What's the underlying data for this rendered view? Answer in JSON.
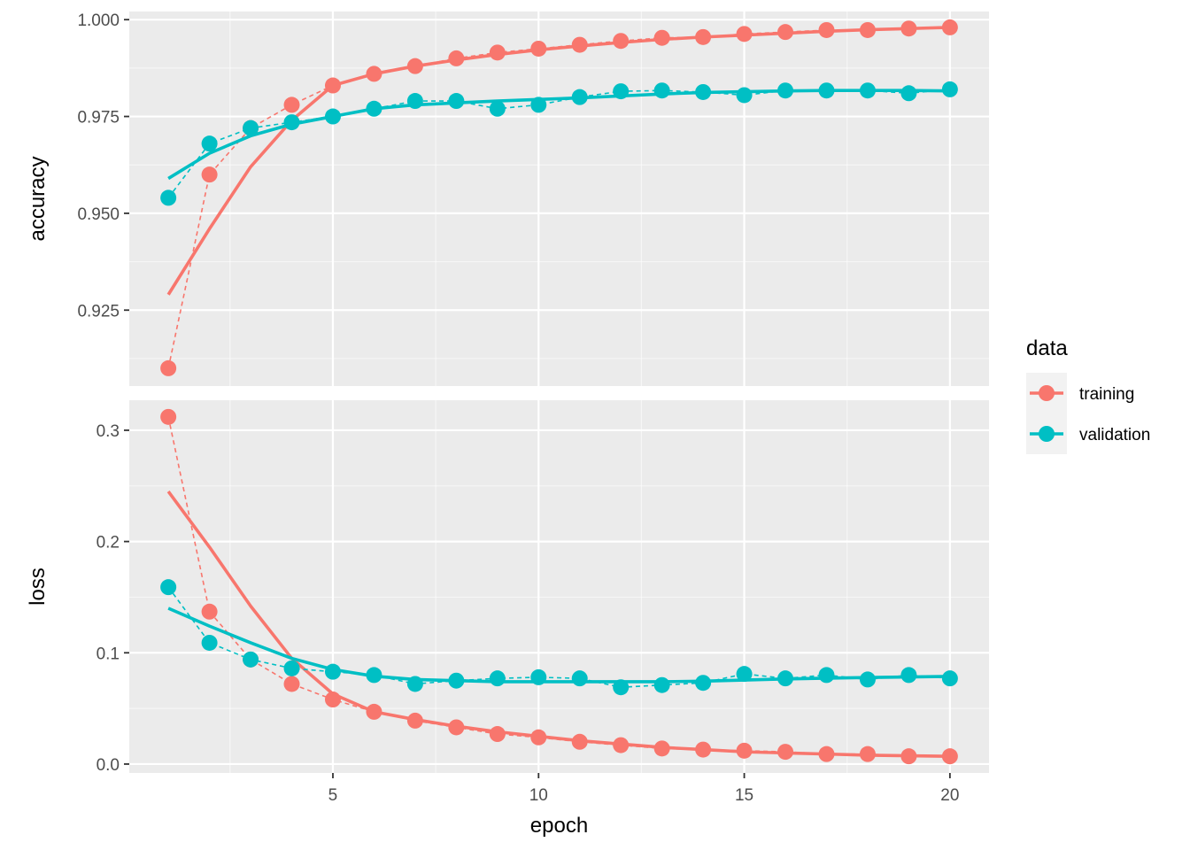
{
  "chart_data": {
    "type": "line",
    "x_label": "epoch",
    "x_ticks": [
      5,
      10,
      15,
      20
    ],
    "x_range": [
      0.05,
      20.95
    ],
    "legend": {
      "title": "data",
      "placement": "right",
      "entries": [
        {
          "label": "training",
          "color": "#F8766D"
        },
        {
          "label": "validation",
          "color": "#00BFC4"
        }
      ]
    },
    "epochs": [
      1,
      2,
      3,
      4,
      5,
      6,
      7,
      8,
      9,
      10,
      11,
      12,
      13,
      14,
      15,
      16,
      17,
      18,
      19,
      20
    ],
    "panels": [
      {
        "metric": "accuracy",
        "y_label": "accuracy",
        "y_range": [
          0.9054,
          1.0021
        ],
        "y_ticks": [
          0.925,
          0.95,
          0.975,
          1.0
        ],
        "y_tick_labels": [
          "0.925",
          "0.950",
          "0.975",
          "1.000"
        ],
        "series": [
          {
            "name": "training",
            "color": "#F8766D",
            "values": [
              0.91,
              0.96,
              0.972,
              0.978,
              0.983,
              0.986,
              0.988,
              0.99,
              0.9915,
              0.9925,
              0.9935,
              0.9945,
              0.9953,
              0.9955,
              0.9963,
              0.9968,
              0.9973,
              0.9973,
              0.9977,
              0.998
            ],
            "smooth": [
              0.929,
              0.946,
              0.962,
              0.974,
              0.983,
              0.986,
              0.988,
              0.9896,
              0.991,
              0.9922,
              0.9932,
              0.9941,
              0.9949,
              0.9955,
              0.996,
              0.9965,
              0.997,
              0.9974,
              0.9977,
              0.998
            ]
          },
          {
            "name": "validation",
            "color": "#00BFC4",
            "values": [
              0.954,
              0.968,
              0.972,
              0.9735,
              0.975,
              0.977,
              0.979,
              0.979,
              0.977,
              0.978,
              0.98,
              0.9815,
              0.9817,
              0.9813,
              0.9805,
              0.9817,
              0.9817,
              0.9817,
              0.981,
              0.982
            ],
            "smooth": [
              0.959,
              0.9655,
              0.97,
              0.973,
              0.975,
              0.977,
              0.978,
              0.9785,
              0.979,
              0.9794,
              0.9798,
              0.9803,
              0.9808,
              0.9812,
              0.9814,
              0.9816,
              0.9817,
              0.9817,
              0.9817,
              0.9816
            ]
          }
        ]
      },
      {
        "metric": "loss",
        "y_label": "loss",
        "y_range": [
          -0.008,
          0.327
        ],
        "y_ticks": [
          0.0,
          0.1,
          0.2,
          0.3
        ],
        "y_tick_labels": [
          "0.0",
          "0.1",
          "0.2",
          "0.3"
        ],
        "series": [
          {
            "name": "training",
            "color": "#F8766D",
            "values": [
              0.312,
              0.137,
              0.094,
              0.072,
              0.058,
              0.047,
              0.039,
              0.033,
              0.027,
              0.024,
              0.02,
              0.017,
              0.014,
              0.013,
              0.012,
              0.011,
              0.009,
              0.009,
              0.007,
              0.007
            ],
            "smooth": [
              0.245,
              0.195,
              0.142,
              0.095,
              0.063,
              0.047,
              0.04,
              0.034,
              0.029,
              0.025,
              0.021,
              0.018,
              0.015,
              0.013,
              0.011,
              0.01,
              0.009,
              0.008,
              0.0075,
              0.007
            ]
          },
          {
            "name": "validation",
            "color": "#00BFC4",
            "values": [
              0.159,
              0.109,
              0.094,
              0.086,
              0.083,
              0.08,
              0.072,
              0.075,
              0.077,
              0.078,
              0.077,
              0.069,
              0.071,
              0.073,
              0.081,
              0.077,
              0.08,
              0.076,
              0.08,
              0.077
            ],
            "smooth": [
              0.14,
              0.124,
              0.109,
              0.095,
              0.085,
              0.079,
              0.076,
              0.075,
              0.074,
              0.074,
              0.074,
              0.074,
              0.074,
              0.0745,
              0.0755,
              0.0765,
              0.0772,
              0.0778,
              0.0783,
              0.0788
            ]
          }
        ]
      }
    ]
  }
}
